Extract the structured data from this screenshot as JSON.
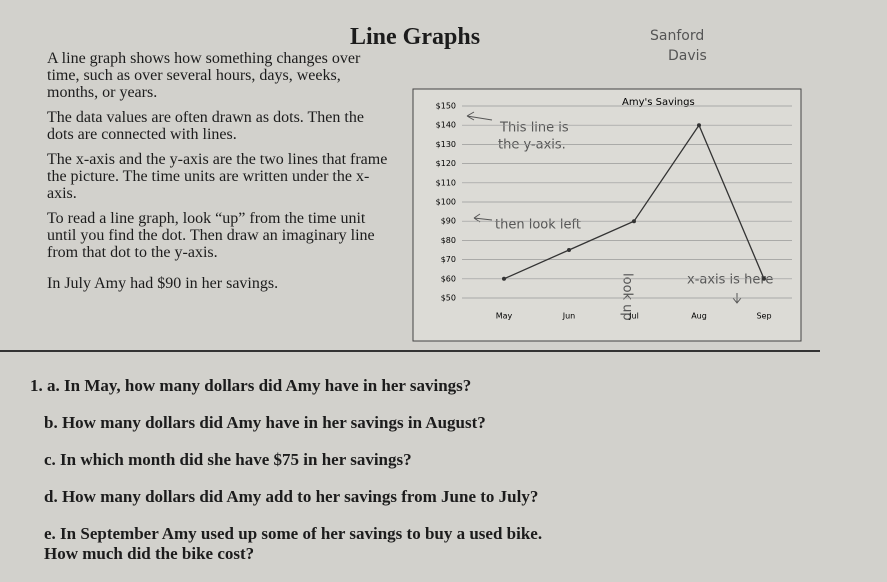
{
  "header": {
    "title": "Line Graphs",
    "name": [
      "Sanford",
      "Davis"
    ]
  },
  "intro": [
    "A line graph shows how something changes over time, such as over several hours, days, weeks, months, or years.",
    "The data values are often drawn as dots. Then the dots are connected with lines.",
    "The x-axis and the y-axis are the two lines that frame the picture. The time units are written under the x-axis.",
    "To read a line graph, look “up” from the time unit until you find the dot. Then draw an imaginary line from that dot to the y-axis.",
    "In July Amy had $90 in her savings."
  ],
  "chart_data": {
    "type": "line",
    "title": "Amy's Savings",
    "categories": [
      "May",
      "Jun",
      "Jul",
      "Aug",
      "Sep"
    ],
    "series": [
      {
        "name": "Savings",
        "color": "#333333",
        "values": [
          60,
          75,
          90,
          140,
          60
        ]
      }
    ],
    "ylim": [
      50,
      150
    ],
    "yticks": [
      {
        "value": 50,
        "label": "$50"
      },
      {
        "value": 60,
        "label": "$60"
      },
      {
        "value": 70,
        "label": "$70"
      },
      {
        "value": 80,
        "label": "$80"
      },
      {
        "value": 90,
        "label": "$90"
      },
      {
        "value": 100,
        "label": "$100"
      },
      {
        "value": 110,
        "label": "$110"
      },
      {
        "value": 120,
        "label": "$120"
      },
      {
        "value": 130,
        "label": "$130"
      },
      {
        "value": 140,
        "label": "$140"
      },
      {
        "value": 150,
        "label": "$150"
      }
    ],
    "grid": true,
    "annotations": [
      "This line is",
      "the y-axis.",
      "then look left",
      "look up",
      "x-axis is here"
    ]
  },
  "questions": [
    [
      "1. a. In May, how many dollars did Amy have in her savings?"
    ],
    [
      "b. How many dollars did Amy have in her savings in August?"
    ],
    [
      "c. In which month did she have $75 in her savings?"
    ],
    [
      "d. How many dollars did Amy add to her savings from June to July?"
    ],
    [
      "e. In September Amy used up some of her savings to buy a used bike.",
      "How much did the bike cost?"
    ]
  ]
}
